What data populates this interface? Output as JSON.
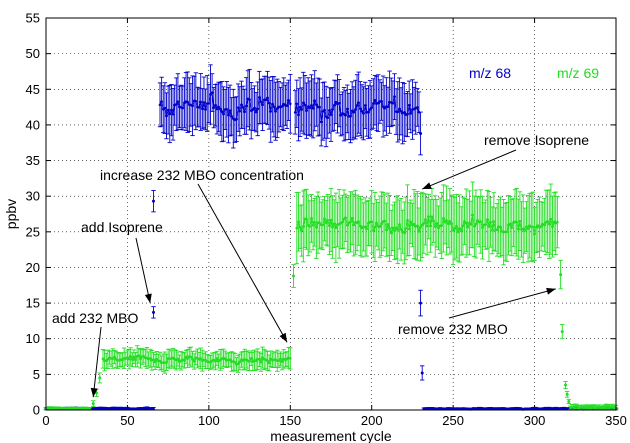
{
  "chart_data": {
    "type": "scatter",
    "title": "",
    "xlabel": "measurement cycle",
    "ylabel": "ppbv",
    "xlim": [
      0,
      350
    ],
    "ylim": [
      0,
      55
    ],
    "x_ticks": [
      0,
      50,
      100,
      150,
      200,
      250,
      300,
      350
    ],
    "y_ticks": [
      0,
      5,
      10,
      15,
      20,
      25,
      30,
      35,
      40,
      45,
      50,
      55
    ],
    "grid": true,
    "grid_style": "dotted",
    "error_bars": true,
    "series": [
      {
        "name": "m/z 68",
        "color": "#0000cc",
        "segments": [
          {
            "x_range": [
              0,
              66
            ],
            "mean": 0.2,
            "noise": 0.1,
            "err": 0.15,
            "step": 1
          },
          {
            "x_range": [
              70,
              150
            ],
            "mean": 42.5,
            "noise": 2.2,
            "err": 3.5,
            "step": 1
          },
          {
            "x_range": [
              153,
              229
            ],
            "mean": 42.5,
            "noise": 2.2,
            "err": 3.5,
            "step": 1
          },
          {
            "x_range": [
              232,
              350
            ],
            "mean": 0.15,
            "noise": 0.1,
            "err": 0.15,
            "step": 1
          }
        ],
        "isolated_points": [
          {
            "x": 66,
            "y": 29.3,
            "err": 1.5
          },
          {
            "x": 66,
            "y": 13.7,
            "err": 0.8
          },
          {
            "x": 230,
            "y": 38.8,
            "err": 3.0
          },
          {
            "x": 230,
            "y": 15.0,
            "err": 1.8
          },
          {
            "x": 231,
            "y": 5.2,
            "err": 1.0
          }
        ]
      },
      {
        "name": "m/z 69",
        "color": "#22dd22",
        "segments": [
          {
            "x_range": [
              0,
              27
            ],
            "mean": 0.15,
            "noise": 0.1,
            "err": 0.2,
            "step": 1
          },
          {
            "x_range": [
              35,
              150
            ],
            "mean": 7.0,
            "noise": 0.8,
            "err": 1.2,
            "step": 1
          },
          {
            "x_range": [
              154,
              314
            ],
            "mean": 26.0,
            "noise": 1.6,
            "err": 4.0,
            "step": 1
          },
          {
            "x_range": [
              322,
              350
            ],
            "mean": 0.4,
            "noise": 0.3,
            "err": 0.3,
            "step": 1
          }
        ],
        "isolated_points": [
          {
            "x": 29,
            "y": 0.9,
            "err": 0.4
          },
          {
            "x": 31,
            "y": 2.4,
            "err": 0.5
          },
          {
            "x": 33,
            "y": 4.5,
            "err": 0.7
          },
          {
            "x": 152,
            "y": 18.8,
            "err": 1.6
          },
          {
            "x": 316,
            "y": 19.0,
            "err": 2.0
          },
          {
            "x": 317,
            "y": 11.0,
            "err": 1.0
          },
          {
            "x": 319,
            "y": 3.5,
            "err": 0.5
          },
          {
            "x": 320,
            "y": 2.2,
            "err": 0.4
          },
          {
            "x": 321,
            "y": 1.2,
            "err": 0.3
          }
        ]
      }
    ],
    "annotations": [
      {
        "text": "add 232 MBO",
        "arrow_to": {
          "x": 29,
          "y": 1.8
        }
      },
      {
        "text": "add Isoprene",
        "arrow_to": {
          "x": 64,
          "y": 15.0
        }
      },
      {
        "text": "increase 232 MBO concentration",
        "arrow_to": {
          "x": 148,
          "y": 9.5
        }
      },
      {
        "text": "remove Isoprene",
        "arrow_to": {
          "x": 231,
          "y": 31.0
        }
      },
      {
        "text": "remove 232 MBO",
        "arrow_to": {
          "x": 313,
          "y": 17.0
        }
      }
    ],
    "legend": {
      "placement": "top-right",
      "entries": [
        {
          "text": "m/z 68",
          "color": "#0000cc"
        },
        {
          "text": "m/z 69",
          "color": "#22dd22"
        }
      ]
    }
  }
}
